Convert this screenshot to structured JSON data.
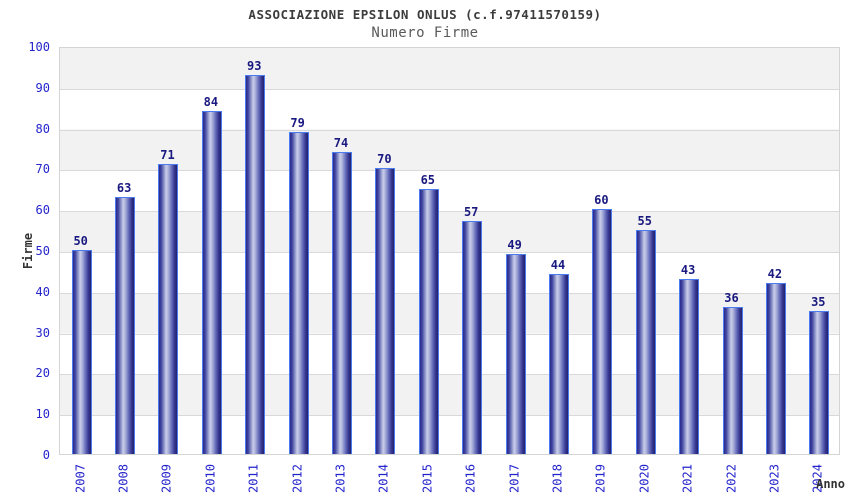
{
  "chart_data": {
    "type": "bar",
    "title": "ASSOCIAZIONE EPSILON ONLUS (c.f.97411570159)",
    "subtitle": "Numero Firme",
    "xlabel": "Anno",
    "ylabel": "Firme",
    "categories": [
      "2007",
      "2008",
      "2009",
      "2010",
      "2011",
      "2012",
      "2013",
      "2014",
      "2015",
      "2016",
      "2017",
      "2018",
      "2019",
      "2020",
      "2021",
      "2022",
      "2023",
      "2024"
    ],
    "values": [
      50,
      63,
      71,
      84,
      93,
      79,
      74,
      70,
      65,
      57,
      49,
      44,
      60,
      55,
      43,
      36,
      42,
      35
    ],
    "ylim": [
      0,
      100
    ],
    "ytick_step": 10,
    "yticks": [
      0,
      10,
      20,
      30,
      40,
      50,
      60,
      70,
      80,
      90,
      100
    ],
    "grid": true,
    "banding": "alternating horizontal bands, gray on odd decades from top",
    "legend": "none",
    "bar_labels_shown": true,
    "colors": {
      "bar_border": "#4a7cf0",
      "bar_dark": "#23236e",
      "bar_highlight": "#c9cde9",
      "tick_label": "#2424cc",
      "value_label": "#191980",
      "title": "#3c3c3c",
      "subtitle": "#5a5a5a",
      "axis_title": "#333333",
      "band": "#f2f2f2",
      "gridline": "#d9d9d9"
    }
  }
}
